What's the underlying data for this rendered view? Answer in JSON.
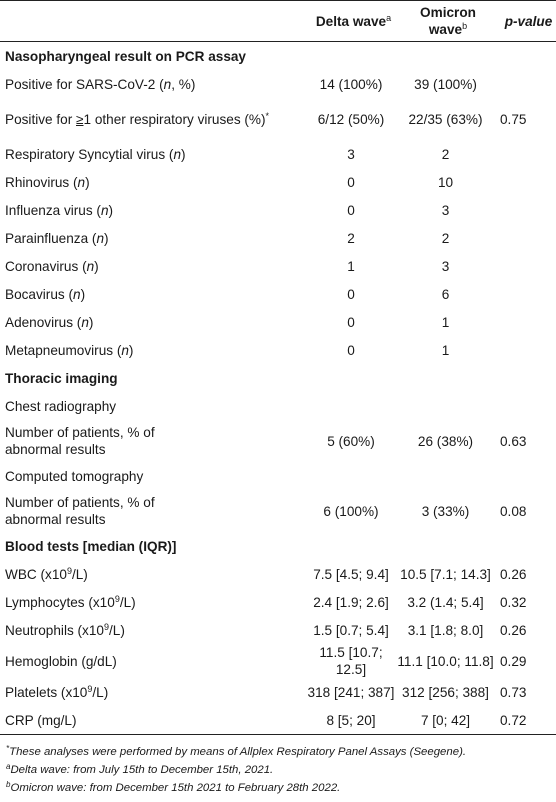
{
  "header": {
    "col_delta": "Delta wave",
    "col_delta_sup": "a",
    "col_omicron": "Omicron wave",
    "col_omicron_sup": "b",
    "col_p": "p-value"
  },
  "sections": {
    "nasopharyngeal": "Nasopharyngeal result on PCR assay",
    "thoracic": "Thoracic imaging",
    "blood": "Blood tests [median (IQR)]"
  },
  "rows": {
    "pos_sars": {
      "label_a": "Positive for SARS-CoV-2 (",
      "label_i": "n",
      "label_b": ", %)",
      "delta": "14 (100%)",
      "omicron": "39 (100%)",
      "p": ""
    },
    "pos_other": {
      "label_a": "Positive for ",
      "label_ge": "≥",
      "label_b": "1 other respiratory viruses (%)",
      "label_sup": "*",
      "delta": "6/12 (50%)",
      "omicron": "22/35 (63%)",
      "p": "0.75"
    },
    "rsv": {
      "label": "Respiratory Syncytial virus",
      "n": "n",
      "delta": "3",
      "omicron": "2",
      "p": ""
    },
    "rhino": {
      "label": "Rhinovirus",
      "n": "n",
      "delta": "0",
      "omicron": "10",
      "p": ""
    },
    "influenza": {
      "label": "Influenza virus",
      "n": "n",
      "delta": "0",
      "omicron": "3",
      "p": ""
    },
    "parainfluenza": {
      "label": "Parainfluenza",
      "n": "n",
      "delta": "2",
      "omicron": "2",
      "p": ""
    },
    "coronavirus": {
      "label": "Coronavirus",
      "n": "n",
      "delta": "1",
      "omicron": "3",
      "p": ""
    },
    "bocavirus": {
      "label": "Bocavirus",
      "n": "n",
      "delta": "0",
      "omicron": "6",
      "p": ""
    },
    "adenovirus": {
      "label": "Adenovirus",
      "n": "n",
      "delta": "0",
      "omicron": "1",
      "p": ""
    },
    "metapneumo": {
      "label": "Metapneumovirus",
      "n": "n",
      "delta": "0",
      "omicron": "1",
      "p": ""
    },
    "chest_rad": {
      "label": "Chest radiography"
    },
    "chest_rad_pts": {
      "label": "Number of patients, % of abnormal results",
      "delta": "5 (60%)",
      "omicron": "26 (38%)",
      "p": "0.63"
    },
    "ct": {
      "label": "Computed tomography"
    },
    "ct_pts": {
      "label": "Number of patients, % of abnormal results",
      "delta": "6 (100%)",
      "omicron": "3 (33%)",
      "p": "0.08"
    },
    "wbc": {
      "label_a": "WBC (x10",
      "sup": "9",
      "label_b": "/L)",
      "delta": "7.5 [4.5; 9.4]",
      "omicron": "10.5 [7.1; 14.3]",
      "p": "0.26"
    },
    "lympho": {
      "label_a": "Lymphocytes (x10",
      "sup": "9",
      "label_b": "/L)",
      "delta": "2.4 [1.9; 2.6]",
      "omicron": "3.2 (1.4; 5.4]",
      "p": "0.32"
    },
    "neutro": {
      "label_a": "Neutrophils (x10",
      "sup": "9",
      "label_b": "/L)",
      "delta": "1.5 [0.7; 5.4]",
      "omicron": "3.1 [1.8; 8.0]",
      "p": "0.26"
    },
    "hemo": {
      "label": "Hemoglobin (g/dL)",
      "delta": "11.5 [10.7; 12.5]",
      "omicron": "11.1 [10.0; 11.8]",
      "p": "0.29"
    },
    "platelets": {
      "label_a": "Platelets (x10",
      "sup": "9",
      "label_b": "/L)",
      "delta": "318 [241; 387]",
      "omicron": "312 [256; 388]",
      "p": "0.73"
    },
    "crp": {
      "label": "CRP (mg/L)",
      "delta": "8 [5; 20]",
      "omicron": "7 [0; 42]",
      "p": "0.72"
    }
  },
  "footnotes": {
    "star_mark": "*",
    "star": "These analyses were performed by means of Allplex Respiratory Panel Assays (Seegene).",
    "a_mark": "a",
    "a": "Delta wave: from July 15th to December 15th, 2021.",
    "b_mark": "b",
    "b": "Omicron wave: from December 15th 2021 to February 28th 2022."
  }
}
